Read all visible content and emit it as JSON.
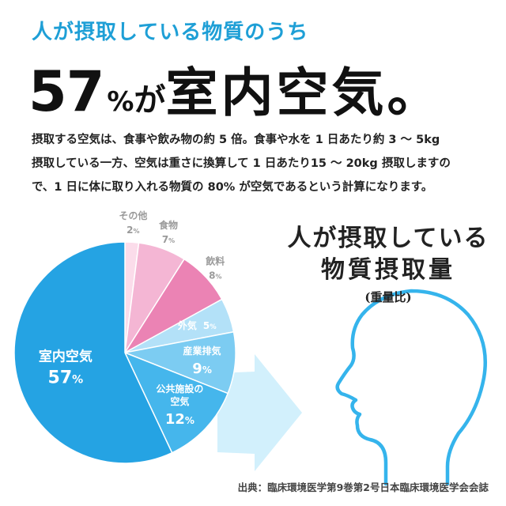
{
  "header": {
    "subtitle": "人が摂取している物質のうち",
    "headline_number": "57",
    "headline_percent": "%",
    "headline_ga": "が",
    "headline_main": "室内空気。"
  },
  "description": [
    "摂取する空気は、食事や飲み物の約 5 倍。食事や水を 1 日あたり約 3 ～ 5kg",
    "摂取している一方、空気は重さに換算して 1 日あたり15 ～ 20kg 摂取しますの",
    "で、1 日に体に取り入れる物質の 80% が空気であるという計算になります。"
  ],
  "right_title": {
    "line1": "人が摂取している",
    "line2": "物質摂取量",
    "line3": "(重量比)"
  },
  "source": "出典：臨床環境医学第9巻第2号日本臨床環境医学会会誌",
  "colors": {
    "accent": "#1e9fd6",
    "indoor_air": "#25a3e3",
    "public_air": "#45b6ec",
    "industrial": "#7cccf2",
    "outdoor": "#b3e1f8",
    "drinks": "#eb83b4",
    "food": "#f4b6d4",
    "other": "#fbdcea",
    "head_outline": "#35b4ec"
  },
  "chart_data": {
    "type": "pie",
    "title": "人が摂取している物質摂取量",
    "subtitle": "(重量比)",
    "slices": [
      {
        "name": "その他",
        "label_lines": [
          "その他"
        ],
        "value": 2,
        "value_text": "2",
        "unit": "%",
        "color_key": "other"
      },
      {
        "name": "食物",
        "label_lines": [
          "食物"
        ],
        "value": 7,
        "value_text": "7",
        "unit": "%",
        "color_key": "food"
      },
      {
        "name": "飲料",
        "label_lines": [
          "飲料"
        ],
        "value": 8,
        "value_text": "8",
        "unit": "%",
        "color_key": "drinks"
      },
      {
        "name": "外気",
        "label_lines": [
          "外気"
        ],
        "value": 5,
        "value_text": "5",
        "unit": "%",
        "color_key": "outdoor"
      },
      {
        "name": "産業排気",
        "label_lines": [
          "産業排気"
        ],
        "value": 9,
        "value_text": "9",
        "unit": "%",
        "color_key": "industrial"
      },
      {
        "name": "公共施設の空気",
        "label_lines": [
          "公共施設の",
          "空気"
        ],
        "value": 12,
        "value_text": "12",
        "unit": "%",
        "color_key": "public_air"
      },
      {
        "name": "室内空気",
        "label_lines": [
          "室内空気"
        ],
        "value": 57,
        "value_text": "57",
        "unit": "%",
        "color_key": "indoor_air"
      }
    ]
  }
}
